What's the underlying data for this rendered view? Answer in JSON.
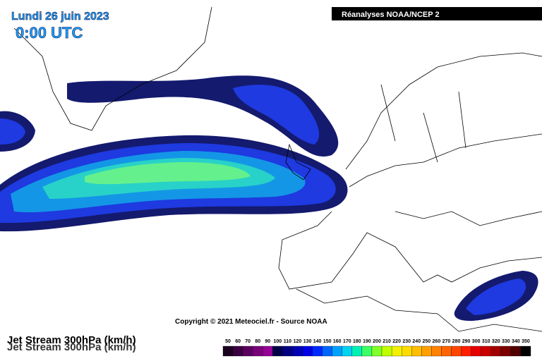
{
  "header": {
    "date": "Lundi 26 juin 2023",
    "time": "0:00 UTC",
    "source": "Réanalyses NOAA/NCEP 2"
  },
  "copyright": "Copyright © 2021 Meteociel.fr - Source NOAA",
  "map_title": "Jet Stream 300hPa (km/h)",
  "legend": {
    "labels": [
      50,
      60,
      70,
      80,
      90,
      100,
      110,
      120,
      130,
      140,
      150,
      160,
      170,
      180,
      190,
      200,
      210,
      220,
      230,
      240,
      250,
      260,
      270,
      280,
      290,
      300,
      310,
      320,
      330,
      340,
      350
    ],
    "colors": [
      "#1c0020",
      "#3a0040",
      "#5c0060",
      "#7a007a",
      "#960096",
      "#00004a",
      "#000080",
      "#0000b4",
      "#0000e6",
      "#0028ff",
      "#0064ff",
      "#00a0ff",
      "#00d2f0",
      "#00f0b4",
      "#3cff64",
      "#80ff28",
      "#c0ff00",
      "#f0f000",
      "#ffdc00",
      "#ffbe00",
      "#ffa000",
      "#ff8200",
      "#ff6400",
      "#ff4600",
      "#ff1e00",
      "#e60000",
      "#c80000",
      "#a00000",
      "#7a0000",
      "#500000",
      "#000000"
    ]
  }
}
